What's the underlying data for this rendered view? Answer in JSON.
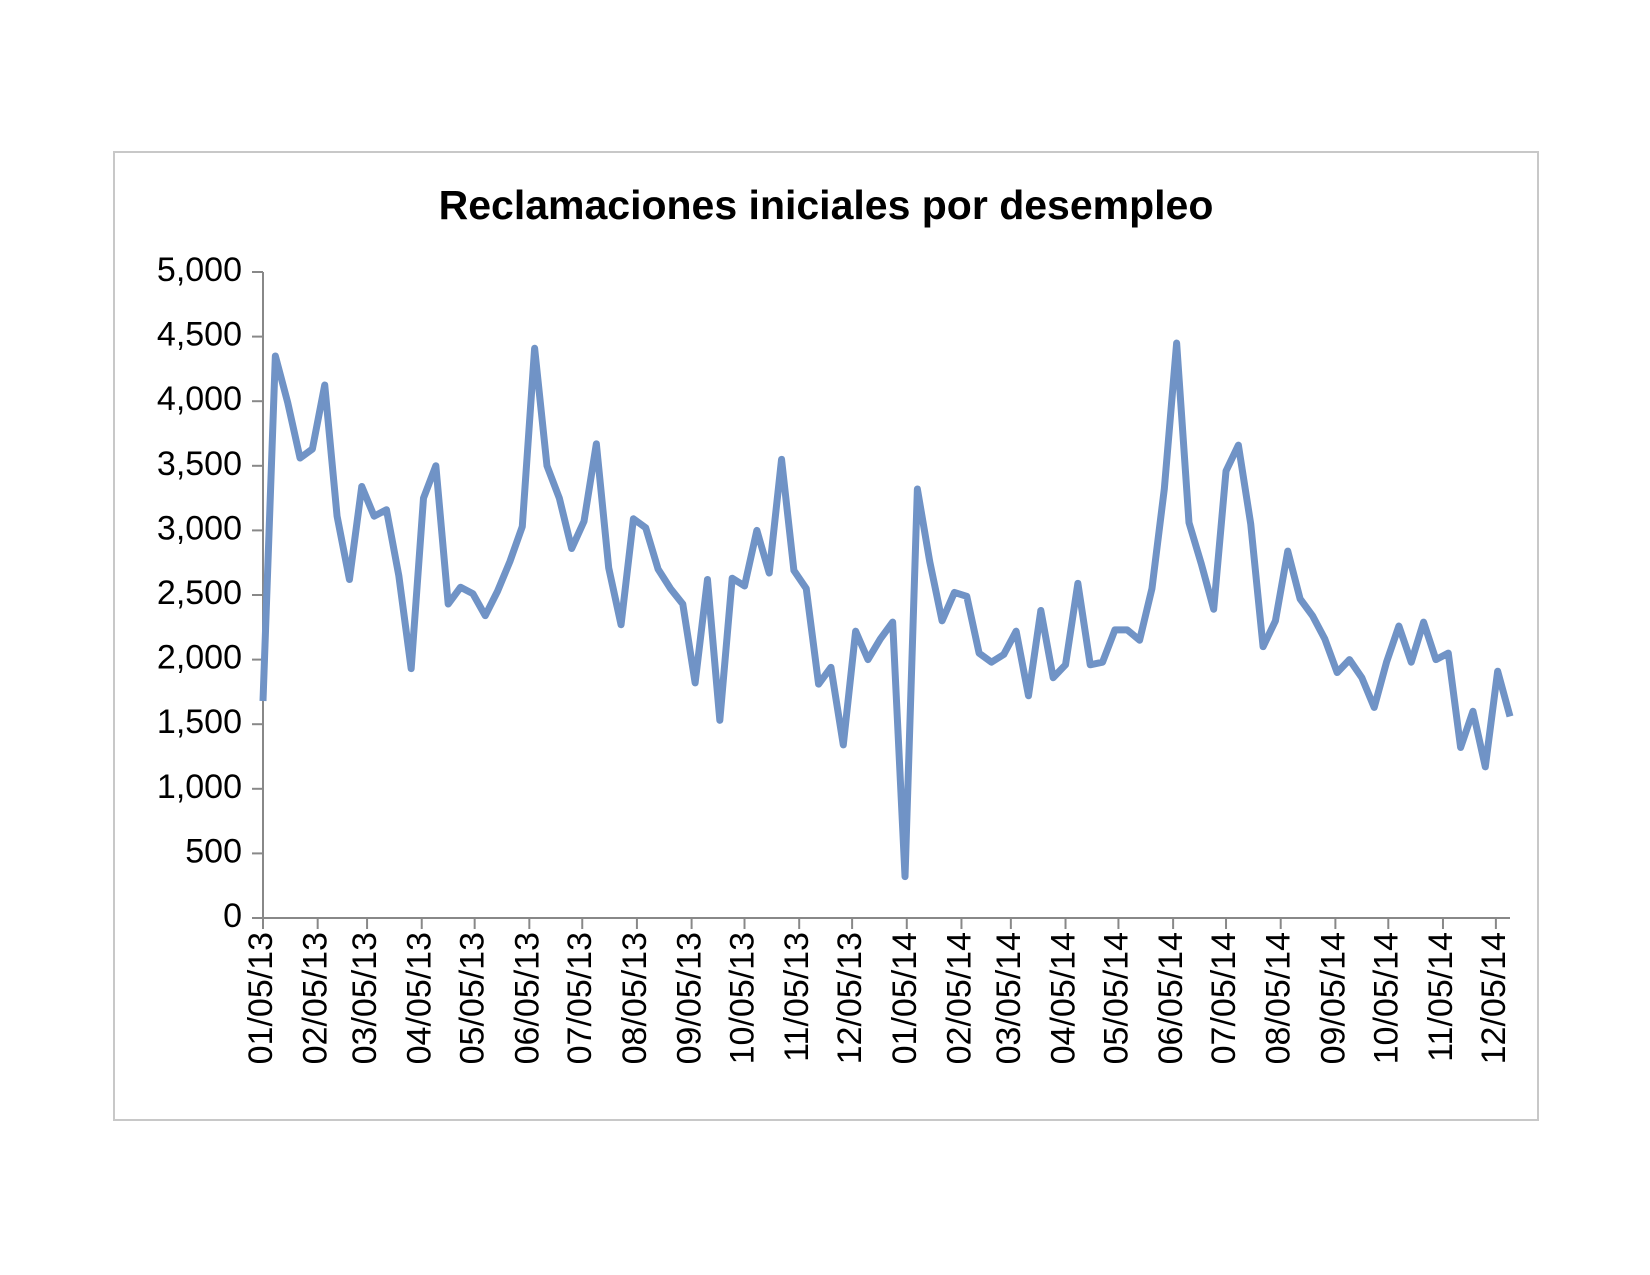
{
  "chart_data": {
    "type": "line",
    "title": "Reclamaciones iniciales por desempleo",
    "x": [
      "01/05/13",
      "01/12/13",
      "01/19/13",
      "01/26/13",
      "02/02/13",
      "02/09/13",
      "02/16/13",
      "02/23/13",
      "03/02/13",
      "03/09/13",
      "03/16/13",
      "03/23/13",
      "03/30/13",
      "04/06/13",
      "04/13/13",
      "04/20/13",
      "04/27/13",
      "05/04/13",
      "05/11/13",
      "05/18/13",
      "05/25/13",
      "06/01/13",
      "06/08/13",
      "06/15/13",
      "06/22/13",
      "06/29/13",
      "07/06/13",
      "07/13/13",
      "07/20/13",
      "07/27/13",
      "08/03/13",
      "08/10/13",
      "08/17/13",
      "08/24/13",
      "08/31/13",
      "09/07/13",
      "09/14/13",
      "09/21/13",
      "09/28/13",
      "10/05/13",
      "10/12/13",
      "10/19/13",
      "10/26/13",
      "11/02/13",
      "11/09/13",
      "11/16/13",
      "11/23/13",
      "11/30/13",
      "12/07/13",
      "12/14/13",
      "12/21/13",
      "12/28/13",
      "01/04/14",
      "01/11/14",
      "01/18/14",
      "01/25/14",
      "02/01/14",
      "02/08/14",
      "02/15/14",
      "02/22/14",
      "03/01/14",
      "03/08/14",
      "03/15/14",
      "03/22/14",
      "03/29/14",
      "04/05/14",
      "04/12/14",
      "04/19/14",
      "04/26/14",
      "05/03/14",
      "05/10/14",
      "05/17/14",
      "05/24/14",
      "05/31/14",
      "06/07/14",
      "06/14/14",
      "06/21/14",
      "06/28/14",
      "07/05/14",
      "07/12/14",
      "07/19/14",
      "07/26/14",
      "08/02/14",
      "08/09/14",
      "08/16/14",
      "08/23/14",
      "08/30/14",
      "09/06/14",
      "09/13/14",
      "09/20/14",
      "09/27/14",
      "10/04/14",
      "10/11/14",
      "10/18/14",
      "10/25/14",
      "11/01/14",
      "11/08/14",
      "11/15/14",
      "11/22/14",
      "11/29/14",
      "12/06/14",
      "12/13/14"
    ],
    "series": [
      {
        "color": "#7093c6",
        "values": [
          1680,
          4350,
          3990,
          3560,
          3630,
          4125,
          3110,
          2620,
          3340,
          3110,
          3160,
          2650,
          1930,
          3250,
          3500,
          2430,
          2560,
          2510,
          2340,
          2530,
          2760,
          3030,
          4410,
          3500,
          3250,
          2860,
          3070,
          3670,
          2710,
          2270,
          3090,
          3020,
          2700,
          2550,
          2430,
          1820,
          2620,
          1530,
          2630,
          2570,
          3000,
          2670,
          3550,
          2690,
          2550,
          1810,
          1940,
          1340,
          2220,
          2000,
          2160,
          2290,
          320,
          3320,
          2760,
          2300,
          2520,
          2490,
          2050,
          1980,
          2040,
          2220,
          1720,
          2380,
          1860,
          1960,
          2590,
          1960,
          1980,
          2230,
          2230,
          2150,
          2550,
          3320,
          4450,
          3060,
          2740,
          2390,
          3460,
          3660,
          3050,
          2100,
          2300,
          2840,
          2470,
          2340,
          2160,
          1900,
          2000,
          1860,
          1630,
          1980,
          2260,
          1980,
          2290,
          2000,
          2050,
          1320,
          1600,
          1170,
          1910,
          1560
        ]
      }
    ],
    "xlim": [
      "01/05/13",
      "12/13/14"
    ],
    "xticks": [
      "01/05/13",
      "02/05/13",
      "03/05/13",
      "04/05/13",
      "05/05/13",
      "06/05/13",
      "07/05/13",
      "08/05/13",
      "09/05/13",
      "10/05/13",
      "11/05/13",
      "12/05/13",
      "01/05/14",
      "02/05/14",
      "03/05/14",
      "04/05/14",
      "05/05/14",
      "06/05/14",
      "07/05/14",
      "08/05/14",
      "09/05/14",
      "10/05/14",
      "11/05/14",
      "12/05/14"
    ],
    "ylim": [
      0,
      5000
    ],
    "yticks": [
      0,
      500,
      {
        "value": 1000,
        "label": "1,000"
      },
      {
        "value": 1500,
        "label": "1,500"
      },
      {
        "value": 2000,
        "label": "2,000"
      },
      {
        "value": 2500,
        "label": "2,500"
      },
      {
        "value": 3000,
        "label": "3,000"
      },
      {
        "value": 3500,
        "label": "3,500"
      },
      {
        "value": 4000,
        "label": "4,000"
      },
      {
        "value": 4500,
        "label": "4,500"
      },
      {
        "value": 5000,
        "label": "5,000"
      }
    ],
    "grid": false
  }
}
